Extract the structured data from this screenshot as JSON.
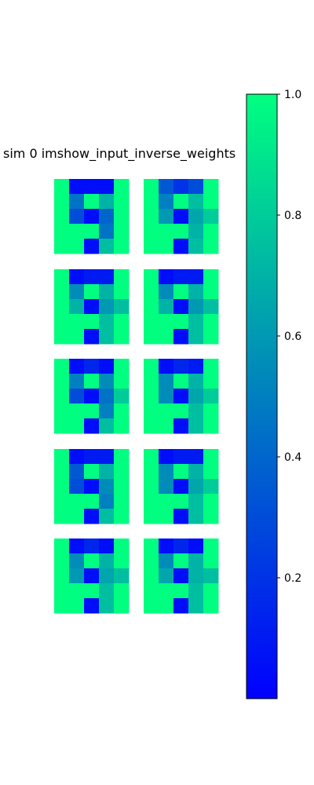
{
  "chart_data": {
    "type": "heatmap",
    "title": "sim 0 imshow_input_inverse_weights",
    "colormap": {
      "name": "winter",
      "low": "#0000ff",
      "high": "#00ff80"
    },
    "colorbar": {
      "ticks": [
        0.2,
        0.4,
        0.6,
        0.8,
        1.0
      ],
      "tick_labels": [
        "0.2",
        "0.4",
        "0.6",
        "0.8",
        "1.0"
      ],
      "range": [
        0.0,
        1.0
      ]
    },
    "grid": "5 rows x 2 columns of 5x5 images",
    "panels": [
      [
        [
          1.0,
          0.05,
          0.05,
          0.05,
          1.0
        ],
        [
          1.0,
          0.45,
          1.0,
          0.7,
          1.0
        ],
        [
          1.0,
          0.3,
          0.05,
          0.4,
          1.0
        ],
        [
          1.0,
          1.0,
          1.0,
          0.45,
          1.0
        ],
        [
          1.0,
          1.0,
          0.05,
          0.75,
          1.0
        ]
      ],
      [
        [
          1.0,
          0.35,
          0.2,
          0.3,
          1.0
        ],
        [
          1.0,
          0.5,
          1.0,
          0.75,
          1.0
        ],
        [
          1.0,
          0.6,
          0.05,
          0.65,
          0.8
        ],
        [
          1.0,
          1.0,
          1.0,
          0.7,
          1.0
        ],
        [
          1.0,
          1.0,
          0.05,
          0.75,
          1.0
        ]
      ],
      [
        [
          1.0,
          0.05,
          0.1,
          0.1,
          1.0
        ],
        [
          1.0,
          0.55,
          1.0,
          0.7,
          1.0
        ],
        [
          1.0,
          0.7,
          0.05,
          0.6,
          0.75
        ],
        [
          1.0,
          1.0,
          1.0,
          0.75,
          1.0
        ],
        [
          1.0,
          1.0,
          0.05,
          0.75,
          1.0
        ]
      ],
      [
        [
          1.0,
          0.05,
          0.1,
          0.1,
          1.0
        ],
        [
          1.0,
          0.55,
          1.0,
          0.7,
          1.0
        ],
        [
          1.0,
          0.7,
          0.05,
          0.6,
          0.75
        ],
        [
          1.0,
          1.0,
          1.0,
          0.75,
          1.0
        ],
        [
          1.0,
          1.0,
          0.05,
          0.75,
          1.0
        ]
      ],
      [
        [
          1.0,
          0.05,
          0.15,
          0.05,
          1.0
        ],
        [
          1.0,
          0.5,
          1.0,
          0.55,
          1.0
        ],
        [
          1.0,
          0.3,
          0.05,
          0.45,
          0.8
        ],
        [
          1.0,
          1.0,
          1.0,
          0.5,
          1.0
        ],
        [
          1.0,
          1.0,
          0.05,
          0.75,
          1.0
        ]
      ],
      [
        [
          1.0,
          0.05,
          0.15,
          0.1,
          1.0
        ],
        [
          1.0,
          0.55,
          1.0,
          0.7,
          1.0
        ],
        [
          1.0,
          0.55,
          0.05,
          0.65,
          0.8
        ],
        [
          1.0,
          1.0,
          1.0,
          0.75,
          1.0
        ],
        [
          1.0,
          1.0,
          0.05,
          0.75,
          1.0
        ]
      ],
      [
        [
          1.0,
          0.05,
          0.1,
          0.1,
          1.0
        ],
        [
          1.0,
          0.35,
          1.0,
          0.7,
          1.0
        ],
        [
          1.0,
          0.3,
          0.05,
          0.55,
          1.0
        ],
        [
          1.0,
          1.0,
          1.0,
          0.5,
          1.0
        ],
        [
          1.0,
          1.0,
          0.05,
          0.75,
          1.0
        ]
      ],
      [
        [
          1.0,
          0.05,
          0.1,
          0.1,
          1.0
        ],
        [
          1.0,
          0.55,
          1.0,
          0.7,
          1.0
        ],
        [
          1.0,
          0.55,
          0.05,
          0.65,
          0.8
        ],
        [
          1.0,
          1.0,
          1.0,
          0.75,
          1.0
        ],
        [
          1.0,
          1.0,
          0.05,
          0.75,
          1.0
        ]
      ],
      [
        [
          1.0,
          0.05,
          0.15,
          0.05,
          1.0
        ],
        [
          1.0,
          0.55,
          1.0,
          0.7,
          1.0
        ],
        [
          1.0,
          0.6,
          0.05,
          0.65,
          0.75
        ],
        [
          1.0,
          1.0,
          1.0,
          0.75,
          1.0
        ],
        [
          1.0,
          1.0,
          0.05,
          0.75,
          1.0
        ]
      ],
      [
        [
          1.0,
          0.05,
          0.15,
          0.05,
          1.0
        ],
        [
          1.0,
          0.55,
          1.0,
          0.7,
          1.0
        ],
        [
          1.0,
          0.65,
          0.05,
          0.7,
          0.75
        ],
        [
          1.0,
          1.0,
          1.0,
          0.75,
          1.0
        ],
        [
          1.0,
          1.0,
          0.05,
          0.75,
          1.0
        ]
      ]
    ]
  }
}
